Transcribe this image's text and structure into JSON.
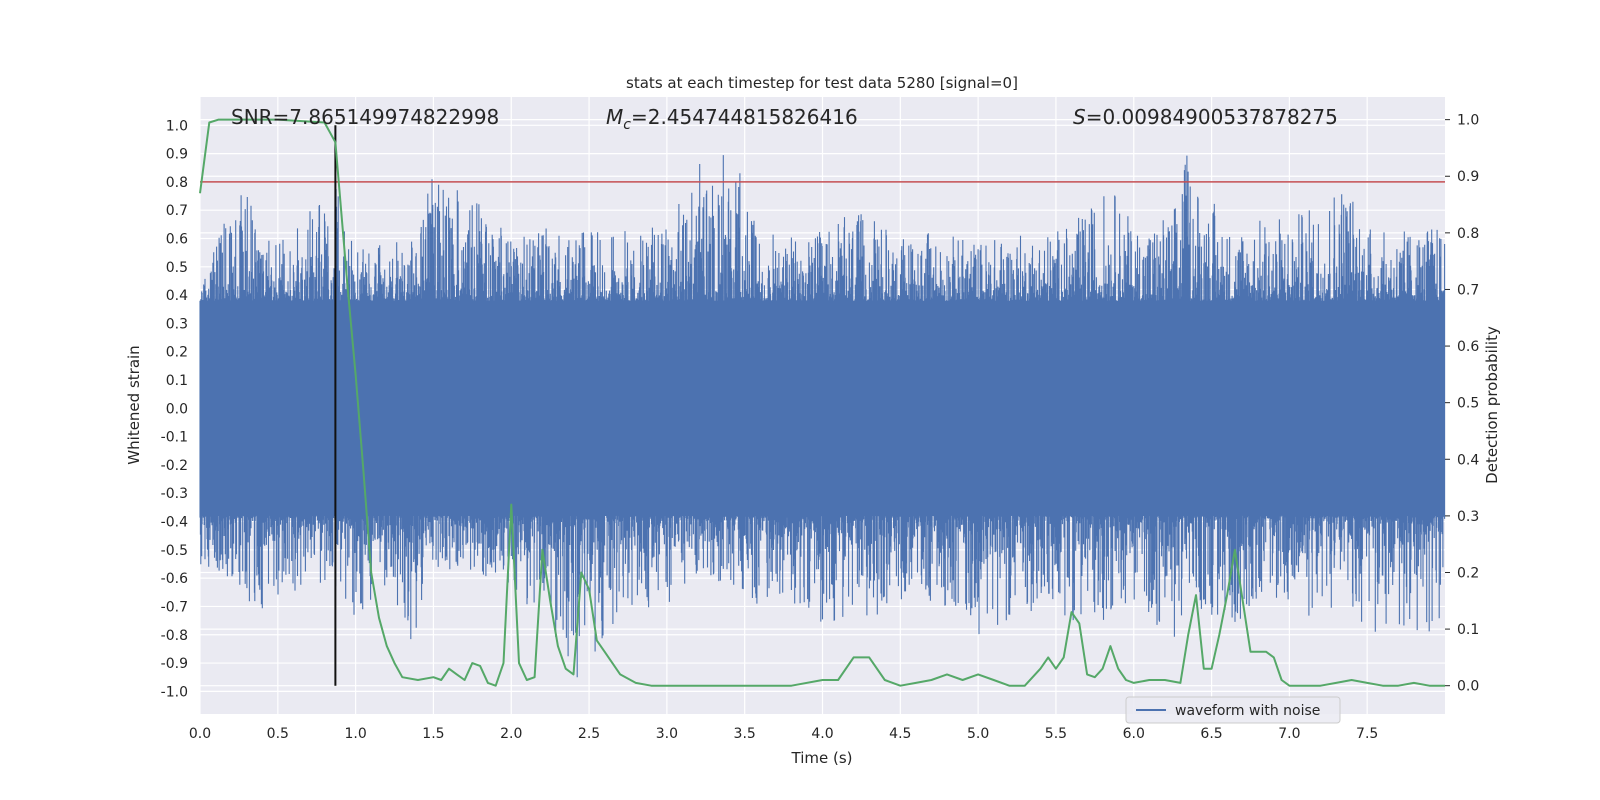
{
  "chart_data": {
    "type": "line",
    "title": "stats at each timestep for test data 5280 [signal=0]",
    "xlabel": "Time (s)",
    "ylabel_left": "Whitened strain",
    "ylabel_right": "Detection probability",
    "xlim": [
      0.0,
      8.0
    ],
    "ylim_left": [
      -1.08,
      1.1
    ],
    "ylim_right": [
      -0.05,
      1.04
    ],
    "x_ticks": [
      "0.0",
      "0.5",
      "1.0",
      "1.5",
      "2.0",
      "2.5",
      "3.0",
      "3.5",
      "4.0",
      "4.5",
      "5.0",
      "5.5",
      "6.0",
      "6.5",
      "7.0",
      "7.5"
    ],
    "y_ticks_left": [
      "1.0",
      "0.9",
      "0.8",
      "0.7",
      "0.6",
      "0.5",
      "0.4",
      "0.3",
      "0.2",
      "0.1",
      "0.0",
      "-0.1",
      "-0.2",
      "-0.3",
      "-0.4",
      "-0.5",
      "-0.6",
      "-0.7",
      "-0.8",
      "-0.9",
      "-1.0"
    ],
    "y_ticks_right": [
      "1.0",
      "0.9",
      "0.8",
      "0.7",
      "0.6",
      "0.5",
      "0.4",
      "0.3",
      "0.2",
      "0.1",
      "0.0"
    ],
    "grid": true,
    "legend_position": "lower-right",
    "annotations": {
      "snr": "SNR=7.865149974822998",
      "mc_symbol": "M",
      "mc_sub": "c",
      "mc_value": "=2.454744815826416",
      "s_symbol": "S",
      "s_value": "=0.00984900537878275"
    },
    "threshold_y_left": 0.8,
    "marker_time": 0.87,
    "series": [
      {
        "name": "waveform with noise",
        "axis": "left",
        "color": "#4c72b0",
        "envelope_note": "dense whitened strain; approx envelope (time, max, min)",
        "envelope": [
          [
            0.0,
            0.4,
            -0.55
          ],
          [
            0.25,
            0.85,
            -0.62
          ],
          [
            0.4,
            0.6,
            -0.78
          ],
          [
            0.6,
            0.62,
            -0.65
          ],
          [
            0.85,
            0.82,
            -0.62
          ],
          [
            1.0,
            0.55,
            -0.78
          ],
          [
            1.2,
            0.6,
            -0.65
          ],
          [
            1.4,
            0.62,
            -0.87
          ],
          [
            1.47,
            0.83,
            -0.55
          ],
          [
            1.75,
            0.75,
            -0.6
          ],
          [
            2.0,
            0.6,
            -0.62
          ],
          [
            2.3,
            0.65,
            -0.85
          ],
          [
            2.45,
            0.62,
            -0.98
          ],
          [
            2.7,
            0.65,
            -0.75
          ],
          [
            3.0,
            0.65,
            -0.7
          ],
          [
            3.25,
            0.92,
            -0.6
          ],
          [
            3.38,
            0.99,
            -0.65
          ],
          [
            3.6,
            0.62,
            -0.7
          ],
          [
            3.9,
            0.6,
            -0.75
          ],
          [
            4.2,
            0.7,
            -0.78
          ],
          [
            4.5,
            0.62,
            -0.68
          ],
          [
            4.8,
            0.62,
            -0.7
          ],
          [
            5.0,
            0.6,
            -0.8
          ],
          [
            5.3,
            0.62,
            -0.72
          ],
          [
            5.6,
            0.65,
            -0.75
          ],
          [
            5.85,
            0.8,
            -0.75
          ],
          [
            6.0,
            0.65,
            -0.68
          ],
          [
            6.25,
            0.7,
            -0.85
          ],
          [
            6.33,
            0.92,
            -0.7
          ],
          [
            6.6,
            0.65,
            -0.8
          ],
          [
            6.85,
            0.68,
            -0.65
          ],
          [
            7.1,
            0.7,
            -0.75
          ],
          [
            7.35,
            0.85,
            -0.7
          ],
          [
            7.55,
            0.62,
            -0.82
          ],
          [
            7.9,
            0.65,
            -0.8
          ]
        ]
      },
      {
        "name": "",
        "axis": "right",
        "color": "#55a868",
        "x": [
          0.0,
          0.06,
          0.12,
          0.2,
          0.5,
          0.8,
          0.87,
          0.95,
          1.0,
          1.05,
          1.1,
          1.15,
          1.2,
          1.25,
          1.3,
          1.4,
          1.5,
          1.55,
          1.6,
          1.65,
          1.7,
          1.75,
          1.8,
          1.85,
          1.9,
          1.95,
          2.0,
          2.05,
          2.1,
          2.15,
          2.2,
          2.25,
          2.3,
          2.35,
          2.4,
          2.45,
          2.5,
          2.55,
          2.6,
          2.65,
          2.7,
          2.8,
          2.9,
          3.0,
          3.2,
          3.4,
          3.6,
          3.8,
          4.0,
          4.1,
          4.2,
          4.3,
          4.4,
          4.5,
          4.6,
          4.7,
          4.8,
          4.9,
          5.0,
          5.1,
          5.2,
          5.3,
          5.4,
          5.45,
          5.5,
          5.55,
          5.6,
          5.65,
          5.7,
          5.75,
          5.8,
          5.85,
          5.9,
          5.95,
          6.0,
          6.1,
          6.2,
          6.3,
          6.35,
          6.4,
          6.45,
          6.5,
          6.55,
          6.6,
          6.65,
          6.7,
          6.75,
          6.8,
          6.85,
          6.9,
          6.95,
          7.0,
          7.1,
          7.2,
          7.3,
          7.4,
          7.5,
          7.6,
          7.7,
          7.8,
          7.9,
          8.0
        ],
        "y": [
          0.87,
          0.995,
          1.0,
          1.0,
          1.0,
          0.995,
          0.96,
          0.7,
          0.55,
          0.38,
          0.2,
          0.12,
          0.07,
          0.04,
          0.015,
          0.01,
          0.015,
          0.01,
          0.03,
          0.02,
          0.01,
          0.04,
          0.035,
          0.005,
          0.0,
          0.04,
          0.32,
          0.04,
          0.01,
          0.015,
          0.24,
          0.15,
          0.07,
          0.03,
          0.02,
          0.2,
          0.17,
          0.08,
          0.06,
          0.04,
          0.02,
          0.005,
          0.0,
          0.0,
          0.0,
          0.0,
          0.0,
          0.0,
          0.01,
          0.01,
          0.05,
          0.05,
          0.01,
          0.0,
          0.005,
          0.01,
          0.02,
          0.01,
          0.02,
          0.01,
          0.0,
          0.0,
          0.03,
          0.05,
          0.03,
          0.05,
          0.13,
          0.11,
          0.02,
          0.015,
          0.03,
          0.07,
          0.03,
          0.01,
          0.005,
          0.01,
          0.01,
          0.005,
          0.09,
          0.16,
          0.03,
          0.03,
          0.09,
          0.16,
          0.24,
          0.15,
          0.06,
          0.06,
          0.06,
          0.05,
          0.01,
          0.0,
          0.0,
          0.0,
          0.005,
          0.01,
          0.005,
          0.0,
          0.0,
          0.005,
          0.0,
          0.0
        ]
      }
    ]
  }
}
